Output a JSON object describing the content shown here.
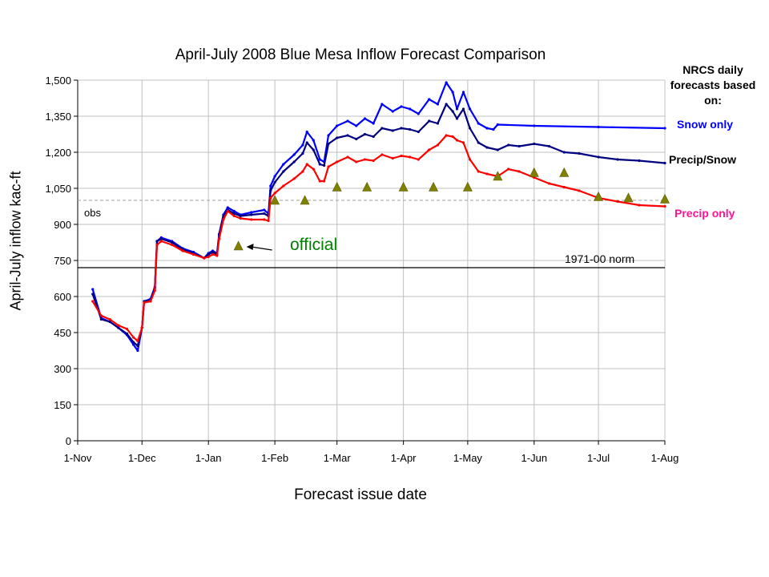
{
  "chart_data": {
    "type": "line",
    "title": "April-July 2008 Blue Mesa Inflow Forecast Comparison",
    "xlabel": "Forecast issue date",
    "ylabel": "April-July inflow kac-ft",
    "x_tick_labels": [
      "1-Nov",
      "1-Dec",
      "1-Jan",
      "1-Feb",
      "1-Mar",
      "1-Apr",
      "1-May",
      "1-Jun",
      "1-Jul",
      "1-Aug"
    ],
    "x_tick_dates": [
      "2007-11-01",
      "2007-12-01",
      "2008-01-01",
      "2008-02-01",
      "2008-03-01",
      "2008-04-01",
      "2008-05-01",
      "2008-06-01",
      "2008-07-01",
      "2008-08-01"
    ],
    "xlim": [
      "2007-11-01",
      "2008-08-01"
    ],
    "y_tick_labels": [
      "0",
      "150",
      "300",
      "450",
      "600",
      "750",
      "900",
      "1,050",
      "1,200",
      "1,350",
      "1,500"
    ],
    "ylim": [
      0,
      1500
    ],
    "grid": true,
    "legend_title": "NRCS daily forecasts based on:",
    "series": [
      {
        "name": "Snow only",
        "color": "#0000ff",
        "points": [
          [
            "2007-11-08",
            630
          ],
          [
            "2007-11-12",
            510
          ],
          [
            "2007-11-16",
            495
          ],
          [
            "2007-11-20",
            470
          ],
          [
            "2007-11-24",
            440
          ],
          [
            "2007-11-27",
            400
          ],
          [
            "2007-11-29",
            375
          ],
          [
            "2007-12-01",
            470
          ],
          [
            "2007-12-02",
            580
          ],
          [
            "2007-12-05",
            590
          ],
          [
            "2007-12-07",
            640
          ],
          [
            "2007-12-08",
            830
          ],
          [
            "2007-12-10",
            845
          ],
          [
            "2007-12-15",
            830
          ],
          [
            "2007-12-20",
            800
          ],
          [
            "2007-12-25",
            785
          ],
          [
            "2007-12-30",
            760
          ],
          [
            "2008-01-01",
            780
          ],
          [
            "2008-01-03",
            790
          ],
          [
            "2008-01-05",
            780
          ],
          [
            "2008-01-06",
            860
          ],
          [
            "2008-01-08",
            940
          ],
          [
            "2008-01-10",
            970
          ],
          [
            "2008-01-13",
            955
          ],
          [
            "2008-01-16",
            940
          ],
          [
            "2008-01-21",
            950
          ],
          [
            "2008-01-27",
            960
          ],
          [
            "2008-01-29",
            945
          ],
          [
            "2008-01-30",
            1060
          ],
          [
            "2008-02-01",
            1100
          ],
          [
            "2008-02-05",
            1150
          ],
          [
            "2008-02-10",
            1190
          ],
          [
            "2008-02-14",
            1230
          ],
          [
            "2008-02-16",
            1285
          ],
          [
            "2008-02-19",
            1250
          ],
          [
            "2008-02-22",
            1170
          ],
          [
            "2008-02-24",
            1160
          ],
          [
            "2008-02-26",
            1270
          ],
          [
            "2008-03-01",
            1310
          ],
          [
            "2008-03-06",
            1330
          ],
          [
            "2008-03-10",
            1310
          ],
          [
            "2008-03-14",
            1340
          ],
          [
            "2008-03-18",
            1320
          ],
          [
            "2008-03-22",
            1400
          ],
          [
            "2008-03-27",
            1370
          ],
          [
            "2008-03-31",
            1390
          ],
          [
            "2008-04-04",
            1380
          ],
          [
            "2008-04-08",
            1360
          ],
          [
            "2008-04-13",
            1420
          ],
          [
            "2008-04-17",
            1400
          ],
          [
            "2008-04-21",
            1490
          ],
          [
            "2008-04-24",
            1450
          ],
          [
            "2008-04-26",
            1380
          ],
          [
            "2008-04-29",
            1450
          ],
          [
            "2008-05-02",
            1380
          ],
          [
            "2008-05-06",
            1320
          ],
          [
            "2008-05-10",
            1300
          ],
          [
            "2008-05-13",
            1295
          ],
          [
            "2008-05-15",
            1315
          ],
          [
            "2008-06-01",
            1310
          ],
          [
            "2008-07-01",
            1305
          ],
          [
            "2008-08-01",
            1300
          ]
        ]
      },
      {
        "name": "Precip/Snow",
        "color": "#000080",
        "points": [
          [
            "2007-11-08",
            610
          ],
          [
            "2007-11-12",
            505
          ],
          [
            "2007-11-16",
            495
          ],
          [
            "2007-11-20",
            470
          ],
          [
            "2007-11-24",
            445
          ],
          [
            "2007-11-27",
            410
          ],
          [
            "2007-11-29",
            395
          ],
          [
            "2007-12-01",
            470
          ],
          [
            "2007-12-02",
            580
          ],
          [
            "2007-12-05",
            585
          ],
          [
            "2007-12-07",
            635
          ],
          [
            "2007-12-08",
            830
          ],
          [
            "2007-12-10",
            840
          ],
          [
            "2007-12-15",
            825
          ],
          [
            "2007-12-20",
            795
          ],
          [
            "2007-12-25",
            780
          ],
          [
            "2007-12-30",
            760
          ],
          [
            "2008-01-01",
            775
          ],
          [
            "2008-01-03",
            785
          ],
          [
            "2008-01-05",
            775
          ],
          [
            "2008-01-06",
            855
          ],
          [
            "2008-01-08",
            935
          ],
          [
            "2008-01-10",
            960
          ],
          [
            "2008-01-13",
            945
          ],
          [
            "2008-01-16",
            935
          ],
          [
            "2008-01-21",
            940
          ],
          [
            "2008-01-27",
            945
          ],
          [
            "2008-01-29",
            935
          ],
          [
            "2008-01-30",
            1040
          ],
          [
            "2008-02-01",
            1075
          ],
          [
            "2008-02-05",
            1120
          ],
          [
            "2008-02-10",
            1160
          ],
          [
            "2008-02-14",
            1195
          ],
          [
            "2008-02-16",
            1240
          ],
          [
            "2008-02-19",
            1210
          ],
          [
            "2008-02-22",
            1150
          ],
          [
            "2008-02-24",
            1145
          ],
          [
            "2008-02-26",
            1235
          ],
          [
            "2008-03-01",
            1260
          ],
          [
            "2008-03-06",
            1270
          ],
          [
            "2008-03-10",
            1255
          ],
          [
            "2008-03-14",
            1275
          ],
          [
            "2008-03-18",
            1265
          ],
          [
            "2008-03-22",
            1300
          ],
          [
            "2008-03-27",
            1290
          ],
          [
            "2008-03-31",
            1300
          ],
          [
            "2008-04-04",
            1295
          ],
          [
            "2008-04-08",
            1285
          ],
          [
            "2008-04-13",
            1330
          ],
          [
            "2008-04-17",
            1320
          ],
          [
            "2008-04-21",
            1400
          ],
          [
            "2008-04-24",
            1370
          ],
          [
            "2008-04-26",
            1340
          ],
          [
            "2008-04-29",
            1380
          ],
          [
            "2008-05-02",
            1300
          ],
          [
            "2008-05-06",
            1240
          ],
          [
            "2008-05-10",
            1220
          ],
          [
            "2008-05-15",
            1210
          ],
          [
            "2008-05-20",
            1230
          ],
          [
            "2008-05-25",
            1225
          ],
          [
            "2008-06-01",
            1235
          ],
          [
            "2008-06-08",
            1225
          ],
          [
            "2008-06-15",
            1200
          ],
          [
            "2008-06-22",
            1195
          ],
          [
            "2008-07-01",
            1180
          ],
          [
            "2008-07-10",
            1170
          ],
          [
            "2008-07-20",
            1165
          ],
          [
            "2008-08-01",
            1155
          ]
        ]
      },
      {
        "name": "Precip only",
        "color": "#ff0000",
        "points": [
          [
            "2007-11-08",
            580
          ],
          [
            "2007-11-12",
            520
          ],
          [
            "2007-11-16",
            505
          ],
          [
            "2007-11-20",
            480
          ],
          [
            "2007-11-24",
            465
          ],
          [
            "2007-11-27",
            430
          ],
          [
            "2007-11-29",
            415
          ],
          [
            "2007-12-01",
            470
          ],
          [
            "2007-12-02",
            575
          ],
          [
            "2007-12-05",
            580
          ],
          [
            "2007-12-07",
            625
          ],
          [
            "2007-12-08",
            815
          ],
          [
            "2007-12-10",
            830
          ],
          [
            "2007-12-15",
            815
          ],
          [
            "2007-12-20",
            790
          ],
          [
            "2007-12-25",
            775
          ],
          [
            "2007-12-30",
            760
          ],
          [
            "2008-01-01",
            765
          ],
          [
            "2008-01-03",
            775
          ],
          [
            "2008-01-05",
            770
          ],
          [
            "2008-01-06",
            840
          ],
          [
            "2008-01-08",
            920
          ],
          [
            "2008-01-10",
            955
          ],
          [
            "2008-01-13",
            935
          ],
          [
            "2008-01-16",
            925
          ],
          [
            "2008-01-21",
            920
          ],
          [
            "2008-01-27",
            920
          ],
          [
            "2008-01-29",
            915
          ],
          [
            "2008-01-30",
            1010
          ],
          [
            "2008-02-01",
            1030
          ],
          [
            "2008-02-05",
            1060
          ],
          [
            "2008-02-10",
            1090
          ],
          [
            "2008-02-14",
            1120
          ],
          [
            "2008-02-16",
            1150
          ],
          [
            "2008-02-19",
            1130
          ],
          [
            "2008-02-22",
            1080
          ],
          [
            "2008-02-24",
            1080
          ],
          [
            "2008-02-26",
            1140
          ],
          [
            "2008-03-01",
            1160
          ],
          [
            "2008-03-06",
            1180
          ],
          [
            "2008-03-10",
            1160
          ],
          [
            "2008-03-14",
            1170
          ],
          [
            "2008-03-18",
            1165
          ],
          [
            "2008-03-22",
            1190
          ],
          [
            "2008-03-27",
            1175
          ],
          [
            "2008-03-31",
            1185
          ],
          [
            "2008-04-04",
            1180
          ],
          [
            "2008-04-08",
            1170
          ],
          [
            "2008-04-13",
            1210
          ],
          [
            "2008-04-17",
            1230
          ],
          [
            "2008-04-21",
            1270
          ],
          [
            "2008-04-24",
            1265
          ],
          [
            "2008-04-26",
            1250
          ],
          [
            "2008-04-29",
            1240
          ],
          [
            "2008-05-02",
            1170
          ],
          [
            "2008-05-06",
            1120
          ],
          [
            "2008-05-10",
            1110
          ],
          [
            "2008-05-15",
            1100
          ],
          [
            "2008-05-20",
            1130
          ],
          [
            "2008-05-25",
            1120
          ],
          [
            "2008-06-01",
            1095
          ],
          [
            "2008-06-08",
            1070
          ],
          [
            "2008-06-15",
            1055
          ],
          [
            "2008-06-22",
            1040
          ],
          [
            "2008-07-01",
            1010
          ],
          [
            "2008-07-10",
            995
          ],
          [
            "2008-07-20",
            980
          ],
          [
            "2008-08-01",
            975
          ]
        ]
      },
      {
        "name": "official",
        "type": "scatter",
        "marker": "triangle",
        "color": "#808000",
        "points": [
          [
            "2008-01-15",
            810
          ],
          [
            "2008-02-01",
            1000
          ],
          [
            "2008-02-15",
            1000
          ],
          [
            "2008-03-01",
            1055
          ],
          [
            "2008-03-15",
            1055
          ],
          [
            "2008-04-01",
            1055
          ],
          [
            "2008-04-15",
            1055
          ],
          [
            "2008-05-01",
            1055
          ],
          [
            "2008-05-15",
            1100
          ],
          [
            "2008-06-01",
            1115
          ],
          [
            "2008-06-15",
            1115
          ],
          [
            "2008-07-01",
            1015
          ],
          [
            "2008-07-15",
            1010
          ],
          [
            "2008-08-01",
            1005
          ]
        ]
      }
    ],
    "reference_lines": [
      {
        "label": "1971-00 norm",
        "y": 720,
        "style": "solid",
        "color": "#000000"
      },
      {
        "label": "obs",
        "y": 1000,
        "style": "dashed",
        "color": "#a0a0a0"
      }
    ],
    "annotations": [
      {
        "text": "official",
        "color": "#008000",
        "arrow_to": [
          "2008-01-15",
          810
        ]
      }
    ]
  }
}
